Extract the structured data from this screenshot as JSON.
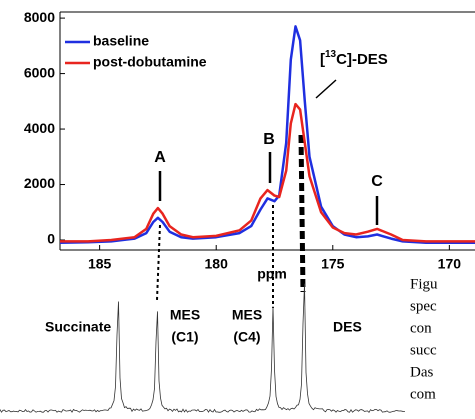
{
  "chart_data": {
    "type": "line",
    "x": [
      186.7,
      185.5,
      184.5,
      183.5,
      183,
      182.7,
      182.5,
      182.3,
      182,
      181.5,
      181,
      180,
      179,
      178.5,
      178.1,
      177.8,
      177.5,
      177.3,
      177,
      176.8,
      176.6,
      176.4,
      176.2,
      176,
      175.5,
      175,
      174.5,
      174,
      173.5,
      173.1,
      172.5,
      172,
      171,
      170,
      168.9
    ],
    "series": [
      {
        "name": "baseline",
        "color": "#1f2fe0",
        "values": [
          -100,
          -80,
          -50,
          50,
          250,
          650,
          800,
          650,
          300,
          100,
          50,
          100,
          250,
          500,
          1100,
          1500,
          1400,
          1600,
          3500,
          6500,
          7700,
          7200,
          5000,
          3000,
          1200,
          500,
          200,
          100,
          130,
          200,
          50,
          -50,
          -100,
          -100,
          -100
        ]
      },
      {
        "name": "post-dobutamine",
        "color": "#e8251f",
        "values": [
          -50,
          -50,
          0,
          100,
          400,
          950,
          1150,
          950,
          500,
          200,
          100,
          150,
          350,
          700,
          1500,
          1800,
          1600,
          1550,
          2500,
          4200,
          4900,
          4700,
          3500,
          2300,
          1000,
          450,
          250,
          200,
          300,
          400,
          200,
          0,
          -50,
          -50,
          -50
        ]
      }
    ],
    "xlim": [
      186.7,
      168.9
    ],
    "xticks": [
      185,
      180,
      175,
      170
    ],
    "ylim": [
      -360,
      8220
    ],
    "yticks": [
      0,
      2000,
      4000,
      6000,
      8000
    ],
    "x_label": "ppm",
    "legend": "top-left",
    "annotations": [
      "A",
      "B",
      "C"
    ],
    "des_label": [
      "[",
      "13",
      "C]-DES"
    ]
  },
  "spectrum_labels": {
    "succinate": "Succinate",
    "mes_c1": [
      "MES",
      "(C1)"
    ],
    "mes_c4": [
      "MES",
      "(C4)"
    ],
    "des": "DES"
  },
  "caption": [
    "Figu",
    "spec",
    "con",
    "succ",
    "Das",
    "com"
  ]
}
